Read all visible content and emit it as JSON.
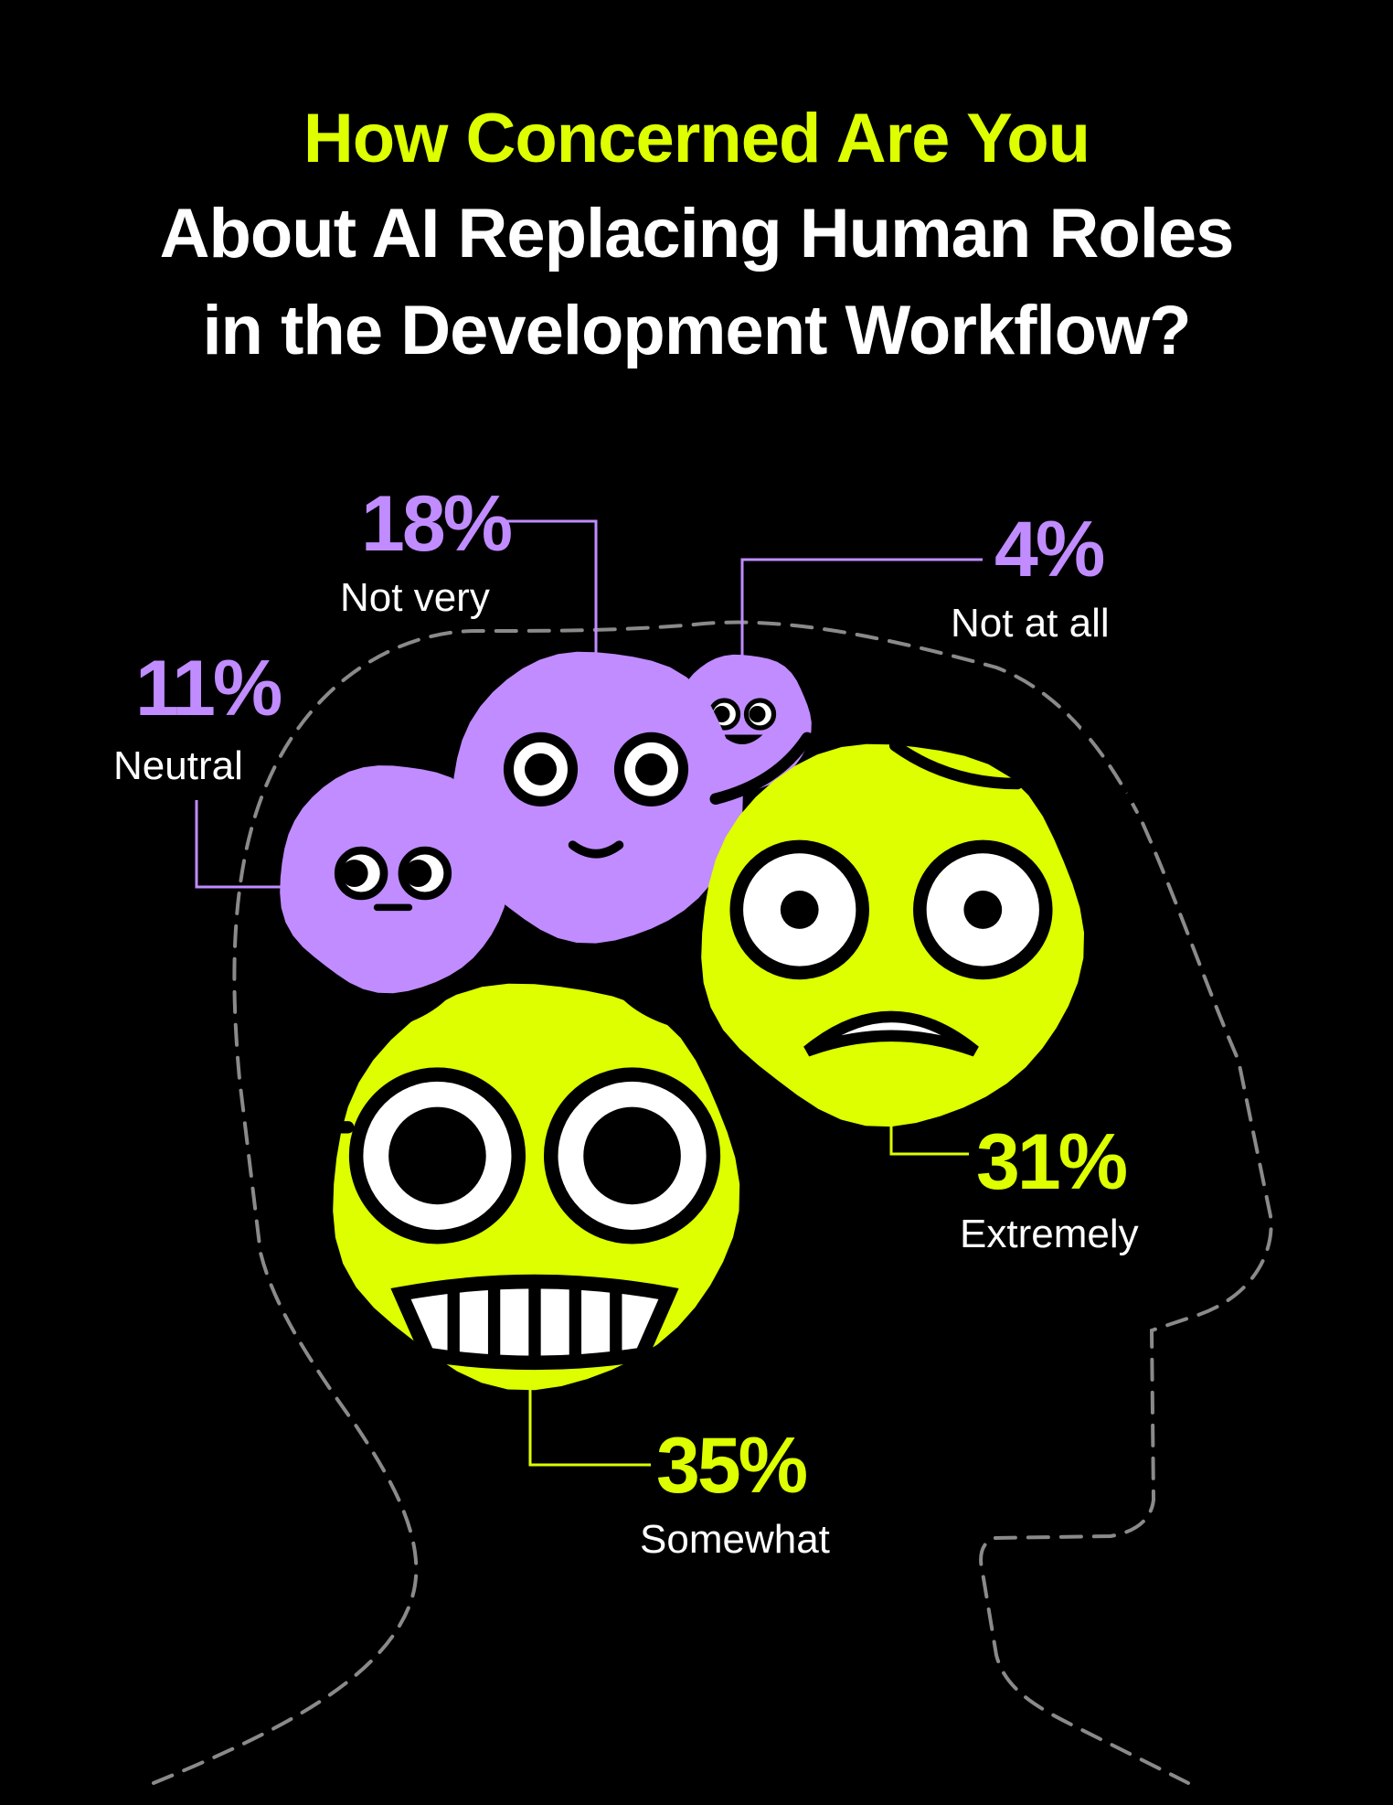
{
  "title": {
    "line1": "How Concerned Are You",
    "line2": "About AI Replacing Human Roles",
    "line3": "in the Development Workflow?"
  },
  "colors": {
    "background": "#000000",
    "lime": "#DDFF00",
    "purple": "#C08CFF",
    "outline": "#8a8a8a",
    "ink": "#000000"
  },
  "chart_data": {
    "type": "bubble",
    "unit": "%",
    "categories": [
      "Not at all",
      "Not very",
      "Neutral",
      "Extremely",
      "Somewhat"
    ],
    "values": [
      4,
      18,
      11,
      31,
      35
    ],
    "points": [
      {
        "label": "Not at all",
        "value": 4,
        "value_text": "4%",
        "color": "purple",
        "face": "smirk"
      },
      {
        "label": "Not very",
        "value": 18,
        "value_text": "18%",
        "color": "purple",
        "face": "smile"
      },
      {
        "label": "Neutral",
        "value": 11,
        "value_text": "11%",
        "color": "purple",
        "face": "side-eye"
      },
      {
        "label": "Extremely",
        "value": 31,
        "value_text": "31%",
        "color": "lime",
        "face": "scared"
      },
      {
        "label": "Somewhat",
        "value": 35,
        "value_text": "35%",
        "color": "lime",
        "face": "nervous-grin"
      }
    ]
  }
}
